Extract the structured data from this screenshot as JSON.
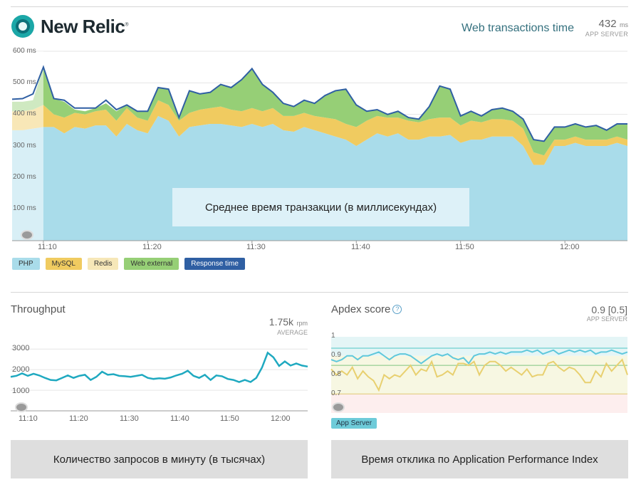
{
  "brand": {
    "name": "New Relic",
    "mark": "®"
  },
  "header": {
    "title": "Web transactions time",
    "value": "432",
    "unit": "ms",
    "sub": "APP SERVER"
  },
  "main_chart": {
    "overlay_label": "Среднее время транзакции (в миллисекундах)",
    "y_ticks": [
      "600 ms",
      "500 ms",
      "400 ms",
      "300 ms",
      "200 ms",
      "100 ms"
    ],
    "x_ticks": [
      "11:10",
      "11:20",
      "11:30",
      "11:40",
      "11:50",
      "12:00"
    ],
    "legend": [
      {
        "label": "PHP",
        "color": "#a9dcea"
      },
      {
        "label": "MySQL",
        "color": "#f0cb60"
      },
      {
        "label": "Redis",
        "color": "#f6e7b8"
      },
      {
        "label": "Web external",
        "color": "#96cf76"
      },
      {
        "label": "Response time",
        "color": "#2f5fa3"
      }
    ]
  },
  "throughput": {
    "title": "Throughput",
    "value": "1.75k",
    "unit": "rpm",
    "sub": "AVERAGE",
    "y_ticks": [
      "3000",
      "2000",
      "1000"
    ],
    "x_ticks": [
      "11:10",
      "11:20",
      "11:30",
      "11:40",
      "11:50",
      "12:00"
    ],
    "caption": "Количество запросов в минуту (в тысячах)"
  },
  "apdex": {
    "title": "Apdex score",
    "value": "0.9 [0.5]",
    "sub": "APP SERVER",
    "y_ticks": [
      "1",
      "0.9",
      "0.8",
      "0.7"
    ],
    "badge": "App Server",
    "caption": "Время отклика по Application Performance Index"
  },
  "chart_data": [
    {
      "type": "area",
      "title": "Web transactions time",
      "ylim": [
        0,
        600
      ],
      "x": [
        "11:07",
        "11:08",
        "11:09",
        "11:10",
        "11:11",
        "11:12",
        "11:13",
        "11:14",
        "11:15",
        "11:16",
        "11:17",
        "11:18",
        "11:19",
        "11:20",
        "11:21",
        "11:22",
        "11:23",
        "11:24",
        "11:25",
        "11:26",
        "11:27",
        "11:28",
        "11:29",
        "11:30",
        "11:31",
        "11:32",
        "11:33",
        "11:34",
        "11:35",
        "11:36",
        "11:37",
        "11:38",
        "11:39",
        "11:40",
        "11:41",
        "11:42",
        "11:43",
        "11:44",
        "11:45",
        "11:46",
        "11:47",
        "11:48",
        "11:49",
        "11:50",
        "11:51",
        "11:52",
        "11:53",
        "11:54",
        "11:55",
        "11:56",
        "11:57",
        "11:58",
        "11:59",
        "12:00",
        "12:01",
        "12:02",
        "12:03",
        "12:04",
        "12:05",
        "12:06"
      ],
      "series": [
        {
          "name": "PHP",
          "values": [
            350,
            350,
            355,
            360,
            360,
            340,
            360,
            355,
            365,
            365,
            330,
            370,
            350,
            340,
            395,
            380,
            330,
            360,
            365,
            370,
            370,
            365,
            360,
            370,
            360,
            370,
            350,
            345,
            360,
            350,
            340,
            330,
            320,
            300,
            320,
            340,
            330,
            340,
            320,
            320,
            330,
            330,
            335,
            310,
            320,
            320,
            330,
            330,
            330,
            300,
            240,
            240,
            300,
            300,
            310,
            300,
            300,
            300,
            310,
            300
          ]
        },
        {
          "name": "MySQL",
          "values": [
            60,
            60,
            60,
            70,
            40,
            50,
            45,
            45,
            45,
            50,
            50,
            50,
            40,
            40,
            50,
            50,
            50,
            45,
            50,
            50,
            55,
            50,
            50,
            50,
            50,
            50,
            45,
            50,
            45,
            45,
            50,
            55,
            50,
            60,
            60,
            55,
            60,
            50,
            60,
            55,
            55,
            60,
            55,
            55,
            60,
            55,
            55,
            55,
            50,
            55,
            40,
            30,
            20,
            20,
            20,
            20,
            20,
            20,
            20,
            20
          ]
        },
        {
          "name": "Web external",
          "values": [
            30,
            30,
            30,
            120,
            50,
            50,
            10,
            10,
            10,
            20,
            30,
            10,
            20,
            30,
            40,
            50,
            10,
            70,
            50,
            50,
            70,
            70,
            100,
            125,
            85,
            50,
            40,
            30,
            40,
            40,
            70,
            90,
            110,
            70,
            30,
            20,
            10,
            20,
            10,
            10,
            40,
            100,
            90,
            30,
            30,
            20,
            30,
            35,
            30,
            30,
            40,
            45,
            40,
            40,
            40,
            40,
            45,
            30,
            40,
            50
          ]
        },
        {
          "name": "Response time",
          "values": [
            448,
            450,
            465,
            550,
            450,
            445,
            420,
            420,
            420,
            445,
            415,
            430,
            410,
            410,
            485,
            480,
            390,
            475,
            465,
            470,
            495,
            485,
            510,
            545,
            495,
            470,
            435,
            425,
            445,
            435,
            460,
            475,
            480,
            430,
            410,
            415,
            400,
            410,
            390,
            385,
            425,
            490,
            480,
            395,
            410,
            395,
            415,
            420,
            410,
            385,
            320,
            315,
            360,
            360,
            370,
            360,
            365,
            350,
            370,
            370
          ]
        }
      ]
    },
    {
      "type": "line",
      "title": "Throughput",
      "ylim": [
        0,
        3700
      ],
      "series": [
        {
          "name": "Throughput",
          "values": [
            1650,
            1700,
            1820,
            1700,
            1800,
            1720,
            1600,
            1500,
            1480,
            1600,
            1720,
            1600,
            1700,
            1750,
            1500,
            1650,
            1900,
            1750,
            1780,
            1700,
            1680,
            1650,
            1700,
            1750,
            1600,
            1550,
            1580,
            1560,
            1620,
            1720,
            1800,
            1950,
            1700,
            1600,
            1750,
            1500,
            1720,
            1680,
            1550,
            1500,
            1400,
            1500,
            1400,
            1600,
            2100,
            2820,
            2600,
            2180,
            2400,
            2200,
            2300,
            2200,
            2150
          ]
        }
      ]
    },
    {
      "type": "line",
      "title": "Apdex score",
      "ylim": [
        0.6,
        1.0
      ],
      "series": [
        {
          "name": "App Server (satisfied)",
          "values": [
            0.88,
            0.87,
            0.88,
            0.9,
            0.9,
            0.88,
            0.9,
            0.9,
            0.91,
            0.92,
            0.9,
            0.88,
            0.9,
            0.91,
            0.91,
            0.9,
            0.88,
            0.86,
            0.88,
            0.9,
            0.91,
            0.9,
            0.91,
            0.89,
            0.88,
            0.89,
            0.86,
            0.9,
            0.91,
            0.91,
            0.92,
            0.91,
            0.92,
            0.91,
            0.92,
            0.92,
            0.92,
            0.93,
            0.92,
            0.93,
            0.91,
            0.92,
            0.93,
            0.91,
            0.92,
            0.93,
            0.92,
            0.93,
            0.92,
            0.93,
            0.91,
            0.92,
            0.92,
            0.93,
            0.92,
            0.91,
            0.92
          ]
        },
        {
          "name": "App Server (tolerating)",
          "values": [
            0.83,
            0.8,
            0.82,
            0.8,
            0.84,
            0.78,
            0.82,
            0.79,
            0.77,
            0.72,
            0.8,
            0.78,
            0.8,
            0.79,
            0.82,
            0.85,
            0.8,
            0.83,
            0.82,
            0.87,
            0.79,
            0.8,
            0.82,
            0.8,
            0.86,
            0.86,
            0.85,
            0.87,
            0.8,
            0.85,
            0.87,
            0.87,
            0.85,
            0.82,
            0.84,
            0.82,
            0.8,
            0.83,
            0.79,
            0.8,
            0.8,
            0.86,
            0.87,
            0.84,
            0.82,
            0.84,
            0.83,
            0.8,
            0.76,
            0.76,
            0.82,
            0.79,
            0.86,
            0.82,
            0.85,
            0.88,
            0.8
          ]
        }
      ]
    }
  ]
}
